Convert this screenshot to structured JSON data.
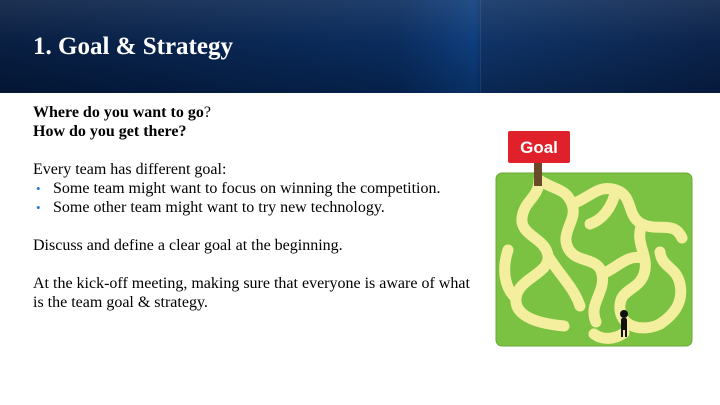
{
  "slide": {
    "title": "1. Goal & Strategy",
    "question_1_bold": "Where do you want to go",
    "question_1_tail": "?",
    "question_2": "How do you get there?",
    "intro": "Every team has different goal:",
    "bullets": [
      "Some team might want to focus on winning the competition.",
      "Some other team might want to try new technology."
    ],
    "discuss": "Discuss and define a clear goal at the beginning.",
    "kickoff": "At the kick-off meeting, making sure that everyone is aware of what is the team goal & strategy."
  },
  "illustration": {
    "sign_text": "Goal",
    "icon": "maze-goal-illustration"
  },
  "colors": {
    "header_dark": "#041a3e",
    "header_mid": "#0a3a7a",
    "bullet": "#2a7bd6",
    "sign_red": "#e0202a",
    "grass": "#7cc242",
    "path": "#f3ef9e"
  }
}
